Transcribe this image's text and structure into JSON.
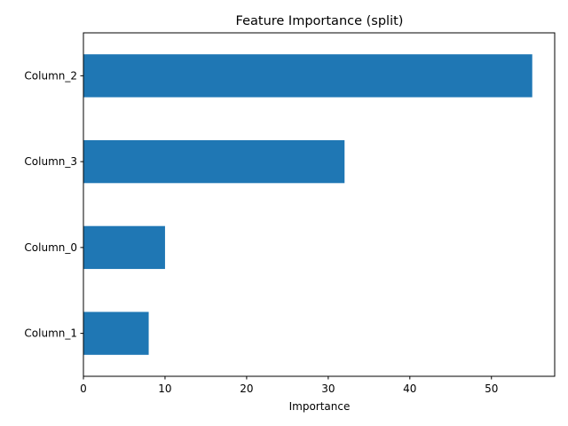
{
  "chart_data": {
    "type": "bar",
    "orientation": "horizontal",
    "title": "Feature Importance (split)",
    "xlabel": "Importance",
    "ylabel": "",
    "categories": [
      "Column_2",
      "Column_3",
      "Column_0",
      "Column_1"
    ],
    "values": [
      55,
      32,
      10,
      8
    ],
    "xlim": [
      0,
      57.75
    ],
    "xticks": [
      0,
      10,
      20,
      30,
      40,
      50
    ],
    "grid": false,
    "bar_color": "#1f77b4"
  }
}
